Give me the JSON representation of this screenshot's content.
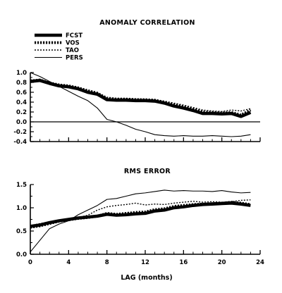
{
  "chart_data": [
    {
      "type": "line",
      "title": "ANOMALY CORRELATION",
      "xlabel": "",
      "ylabel": "",
      "xlim": [
        0,
        24
      ],
      "ylim": [
        -0.4,
        1.0
      ],
      "yticks": [
        -0.4,
        -0.2,
        0.0,
        0.2,
        0.4,
        0.6,
        0.8,
        1.0
      ],
      "ytick_labels": [
        "-0.4",
        "-0.2",
        "0.0",
        "0.2",
        "0.4",
        "0.6",
        "0.8",
        "1.0"
      ],
      "zero_line": true,
      "legend_position": "top-left",
      "x": [
        0,
        1,
        2,
        3,
        4,
        5,
        6,
        7,
        8,
        9,
        10,
        11,
        12,
        13,
        14,
        15,
        16,
        17,
        18,
        19,
        20,
        21,
        22,
        23
      ],
      "series": [
        {
          "name": "FCST",
          "style": "thick-solid",
          "values": [
            0.82,
            0.84,
            0.78,
            0.73,
            0.71,
            0.67,
            0.6,
            0.56,
            0.45,
            0.44,
            0.44,
            0.43,
            0.43,
            0.42,
            0.38,
            0.32,
            0.28,
            0.23,
            0.17,
            0.17,
            0.16,
            0.17,
            0.11,
            0.19
          ]
        },
        {
          "name": "VOS",
          "style": "thick-dotted",
          "values": [
            0.83,
            0.85,
            0.79,
            0.75,
            0.73,
            0.69,
            0.63,
            0.58,
            0.47,
            0.46,
            0.46,
            0.45,
            0.45,
            0.44,
            0.4,
            0.35,
            0.31,
            0.26,
            0.2,
            0.19,
            0.18,
            0.19,
            0.14,
            0.24
          ]
        },
        {
          "name": "TAO",
          "style": "thin-dotted",
          "values": [
            0.85,
            0.85,
            0.8,
            0.75,
            0.72,
            0.7,
            0.65,
            0.6,
            0.5,
            0.48,
            0.48,
            0.47,
            0.46,
            0.45,
            0.42,
            0.38,
            0.34,
            0.29,
            0.24,
            0.22,
            0.21,
            0.24,
            0.22,
            0.27
          ]
        },
        {
          "name": "PERS",
          "style": "thin-solid",
          "values": [
            1.0,
            0.92,
            0.82,
            0.72,
            0.62,
            0.52,
            0.43,
            0.28,
            0.05,
            0.0,
            -0.07,
            -0.15,
            -0.2,
            -0.26,
            -0.28,
            -0.29,
            -0.28,
            -0.29,
            -0.29,
            -0.28,
            -0.29,
            -0.3,
            -0.29,
            -0.26
          ]
        }
      ]
    },
    {
      "type": "line",
      "title": "RMS ERROR",
      "xlabel": "LAG (months)",
      "ylabel": "",
      "xlim": [
        0,
        24
      ],
      "ylim": [
        0.0,
        1.5
      ],
      "xticks": [
        0,
        4,
        8,
        12,
        16,
        20,
        24
      ],
      "xtick_labels": [
        "0",
        "4",
        "8",
        "12",
        "16",
        "20",
        "24"
      ],
      "yticks": [
        0.0,
        0.5,
        1.0,
        1.5
      ],
      "ytick_labels": [
        "0.0",
        "0.5",
        "1.0",
        "1.5"
      ],
      "x": [
        0,
        1,
        2,
        3,
        4,
        5,
        6,
        7,
        8,
        9,
        10,
        11,
        12,
        13,
        14,
        15,
        16,
        17,
        18,
        19,
        20,
        21,
        22,
        23
      ],
      "series": [
        {
          "name": "FCST",
          "style": "thick-solid",
          "values": [
            0.6,
            0.63,
            0.68,
            0.72,
            0.75,
            0.78,
            0.8,
            0.82,
            0.86,
            0.84,
            0.85,
            0.87,
            0.88,
            0.93,
            0.95,
            1.0,
            1.02,
            1.05,
            1.07,
            1.08,
            1.09,
            1.1,
            1.08,
            1.05
          ]
        },
        {
          "name": "VOS",
          "style": "thick-dotted",
          "values": [
            0.58,
            0.61,
            0.66,
            0.71,
            0.74,
            0.77,
            0.79,
            0.82,
            0.88,
            0.86,
            0.88,
            0.9,
            0.91,
            0.96,
            0.98,
            1.03,
            1.05,
            1.07,
            1.08,
            1.09,
            1.1,
            1.12,
            1.1,
            1.07
          ]
        },
        {
          "name": "TAO",
          "style": "thin-dotted",
          "values": [
            0.62,
            0.66,
            0.7,
            0.74,
            0.76,
            0.79,
            0.84,
            0.95,
            1.02,
            1.05,
            1.07,
            1.1,
            1.06,
            1.08,
            1.07,
            1.1,
            1.12,
            1.14,
            1.12,
            1.13,
            1.12,
            1.13,
            1.16,
            1.17
          ]
        },
        {
          "name": "PERS",
          "style": "thin-solid",
          "values": [
            0.05,
            0.3,
            0.55,
            0.65,
            0.72,
            0.85,
            0.95,
            1.05,
            1.18,
            1.2,
            1.25,
            1.3,
            1.32,
            1.35,
            1.38,
            1.36,
            1.37,
            1.36,
            1.36,
            1.35,
            1.37,
            1.34,
            1.32,
            1.33
          ]
        }
      ]
    }
  ]
}
